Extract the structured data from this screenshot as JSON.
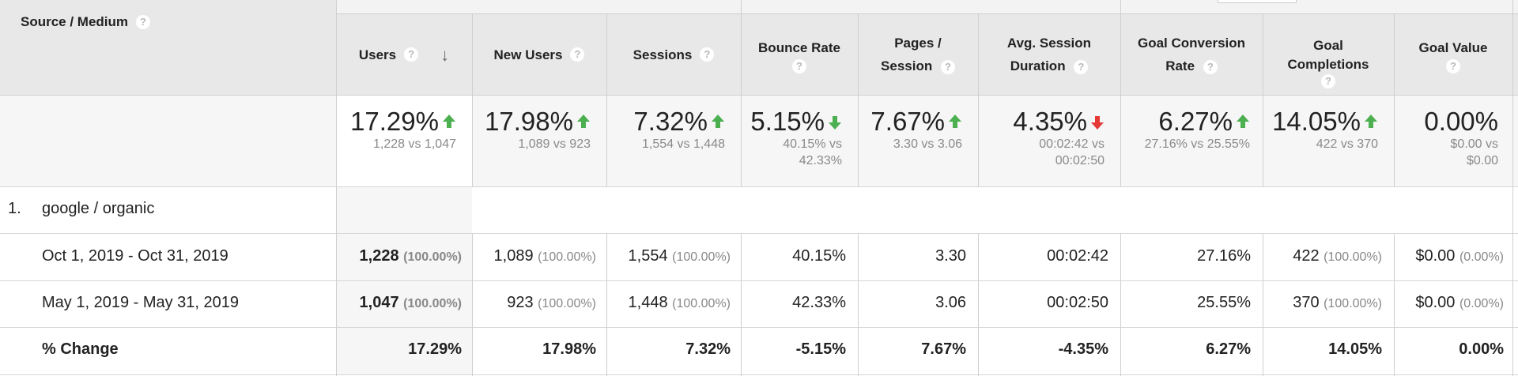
{
  "dimension_header": "Source / Medium",
  "help_icon": "?",
  "columns": [
    {
      "label": "Users",
      "sorted": true
    },
    {
      "label": "New Users"
    },
    {
      "label": "Sessions"
    },
    {
      "label": "Bounce Rate"
    },
    {
      "label": "Pages / Session",
      "line1": "Pages /",
      "line2": "Session"
    },
    {
      "label": "Avg. Session Duration",
      "line1": "Avg. Session",
      "line2": "Duration"
    },
    {
      "label": "Goal Conversion Rate",
      "line1": "Goal Conversion",
      "line2": "Rate"
    },
    {
      "label": "Goal Completions",
      "line1": "Goal",
      "line2": "Completions"
    },
    {
      "label": "Goal Value"
    }
  ],
  "summary": [
    {
      "change": "17.29%",
      "direction": "up",
      "color": "#4caf50",
      "compare": "1,228 vs 1,047"
    },
    {
      "change": "17.98%",
      "direction": "up",
      "color": "#4caf50",
      "compare": "1,089 vs 923"
    },
    {
      "change": "7.32%",
      "direction": "up",
      "color": "#4caf50",
      "compare": "1,554 vs 1,448"
    },
    {
      "change": "5.15%",
      "direction": "down",
      "color": "#4caf50",
      "compare_line1": "40.15% vs",
      "compare_line2": "42.33%"
    },
    {
      "change": "7.67%",
      "direction": "up",
      "color": "#4caf50",
      "compare": "3.30 vs 3.06"
    },
    {
      "change": "4.35%",
      "direction": "down",
      "color": "#e53935",
      "compare_line1": "00:02:42 vs",
      "compare_line2": "00:02:50"
    },
    {
      "change": "6.27%",
      "direction": "up",
      "color": "#4caf50",
      "compare": "27.16% vs 25.55%"
    },
    {
      "change": "14.05%",
      "direction": "up",
      "color": "#4caf50",
      "compare": "422 vs 370"
    },
    {
      "change": "0.00%",
      "direction": "none",
      "compare_line1": "$0.00 vs",
      "compare_line2": "$0.00"
    }
  ],
  "group": {
    "index": "1.",
    "name": "google / organic"
  },
  "rows": [
    {
      "label": "Oct 1, 2019 - Oct 31, 2019",
      "cells": [
        {
          "v": "1,228",
          "p": "(100.00%)"
        },
        {
          "v": "1,089",
          "p": "(100.00%)"
        },
        {
          "v": "1,554",
          "p": "(100.00%)"
        },
        {
          "v": "40.15%"
        },
        {
          "v": "3.30"
        },
        {
          "v": "00:02:42"
        },
        {
          "v": "27.16%"
        },
        {
          "v": "422",
          "p": "(100.00%)"
        },
        {
          "v": "$0.00",
          "p": "(0.00%)"
        }
      ]
    },
    {
      "label": "May 1, 2019 - May 31, 2019",
      "cells": [
        {
          "v": "1,047",
          "p": "(100.00%)"
        },
        {
          "v": "923",
          "p": "(100.00%)"
        },
        {
          "v": "1,448",
          "p": "(100.00%)"
        },
        {
          "v": "42.33%"
        },
        {
          "v": "3.06"
        },
        {
          "v": "00:02:50"
        },
        {
          "v": "25.55%"
        },
        {
          "v": "370",
          "p": "(100.00%)"
        },
        {
          "v": "$0.00",
          "p": "(0.00%)"
        }
      ]
    }
  ],
  "change_row": {
    "label": "% Change",
    "cells": [
      "17.29%",
      "17.98%",
      "7.32%",
      "-5.15%",
      "7.67%",
      "-4.35%",
      "6.27%",
      "14.05%",
      "0.00%"
    ]
  }
}
